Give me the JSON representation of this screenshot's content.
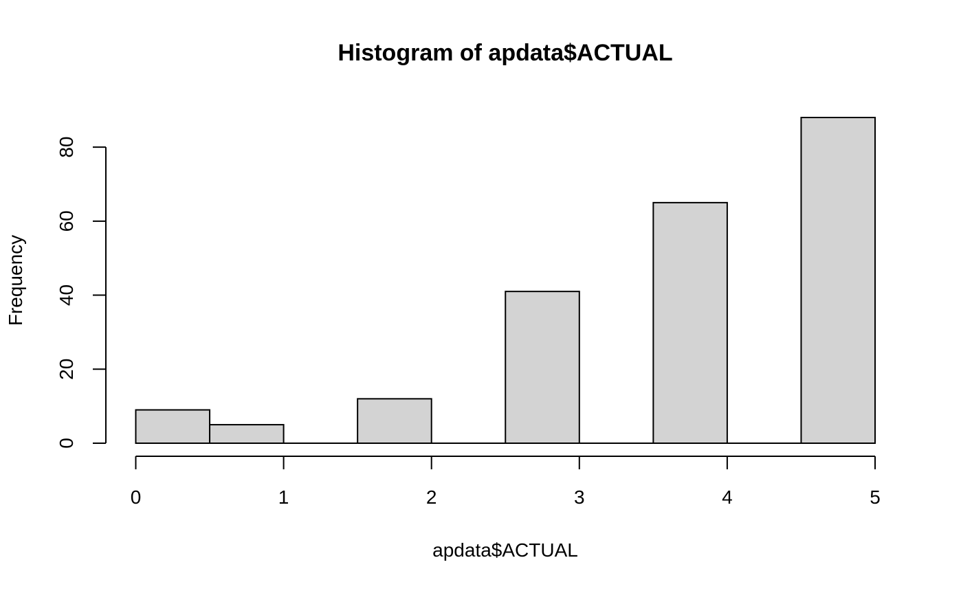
{
  "chart_data": {
    "type": "bar",
    "title": "Histogram of apdata$ACTUAL",
    "xlabel": "apdata$ACTUAL",
    "ylabel": "Frequency",
    "bins": [
      {
        "start": 0.0,
        "end": 0.5,
        "count": 9
      },
      {
        "start": 0.5,
        "end": 1.0,
        "count": 5
      },
      {
        "start": 1.0,
        "end": 1.5,
        "count": 0
      },
      {
        "start": 1.5,
        "end": 2.0,
        "count": 12
      },
      {
        "start": 2.0,
        "end": 2.5,
        "count": 0
      },
      {
        "start": 2.5,
        "end": 3.0,
        "count": 41
      },
      {
        "start": 3.0,
        "end": 3.5,
        "count": 0
      },
      {
        "start": 3.5,
        "end": 4.0,
        "count": 65
      },
      {
        "start": 4.0,
        "end": 4.5,
        "count": 0
      },
      {
        "start": 4.5,
        "end": 5.0,
        "count": 88
      }
    ],
    "xlim": [
      0,
      5
    ],
    "ylim": [
      0,
      88
    ],
    "x_ticks": [
      0,
      1,
      2,
      3,
      4,
      5
    ],
    "y_ticks": [
      0,
      20,
      40,
      60,
      80
    ],
    "grid": false,
    "bar_fill": "#d3d3d3",
    "bar_stroke": "#000000"
  }
}
